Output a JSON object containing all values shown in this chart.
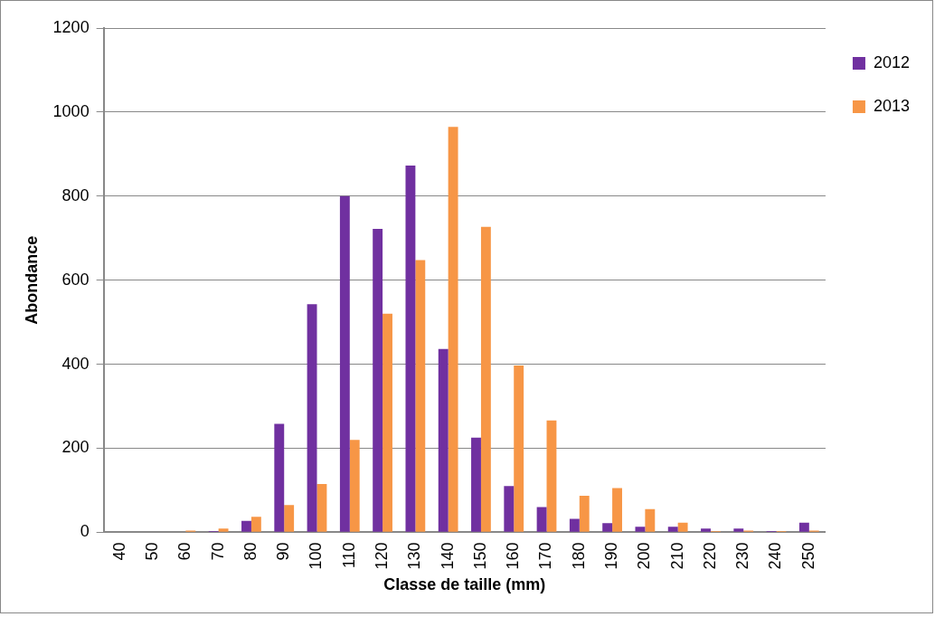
{
  "chart_data": {
    "type": "bar",
    "xlabel": "Classe de taille (mm)",
    "ylabel": "Abondance",
    "categories": [
      "40",
      "50",
      "60",
      "70",
      "80",
      "90",
      "100",
      "110",
      "120",
      "130",
      "140",
      "150",
      "160",
      "170",
      "180",
      "190",
      "200",
      "210",
      "220",
      "230",
      "240",
      "250"
    ],
    "series": [
      {
        "name": "2012",
        "color": "#7030a0",
        "values": [
          0,
          0,
          0,
          3,
          27,
          258,
          543,
          800,
          722,
          873,
          436,
          225,
          110,
          60,
          32,
          22,
          13,
          13,
          9,
          9,
          3,
          23
        ]
      },
      {
        "name": "2013",
        "color": "#f79646",
        "values": [
          0,
          0,
          4,
          9,
          37,
          65,
          115,
          220,
          520,
          648,
          965,
          727,
          397,
          266,
          87,
          105,
          55,
          23,
          3,
          4,
          3,
          4
        ]
      }
    ],
    "ylim": [
      0,
      1200
    ],
    "yticks": [
      0,
      200,
      400,
      600,
      800,
      1000,
      1200
    ],
    "grid": "y",
    "legend": "top right"
  }
}
